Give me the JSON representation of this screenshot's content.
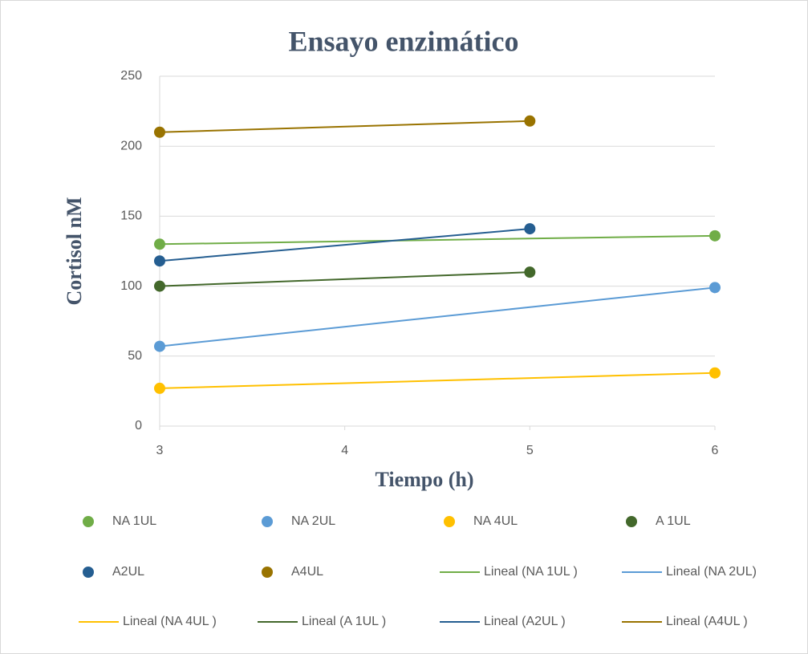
{
  "chart_data": {
    "type": "scatter",
    "title": "Ensayo enzimático",
    "x_label": "Tiempo (h)",
    "y_label": "Cortisol nM",
    "xlim": [
      3,
      6
    ],
    "xticks": [
      3,
      4,
      5,
      6
    ],
    "ylim": [
      0,
      250
    ],
    "yticks": [
      0,
      50,
      100,
      150,
      200,
      250
    ],
    "grid": true,
    "series": [
      {
        "name": "NA 1UL",
        "color": "#70ad47",
        "x": [
          3,
          6
        ],
        "values": [
          130,
          136
        ],
        "trendline": "Lineal (NA 1UL )"
      },
      {
        "name": "NA 2UL",
        "color": "#5b9bd5",
        "x": [
          3,
          6
        ],
        "values": [
          57,
          99
        ],
        "trendline": "Lineal (NA 2UL)"
      },
      {
        "name": "NA 4UL",
        "color": "#ffc000",
        "x": [
          3,
          6
        ],
        "values": [
          27,
          38
        ],
        "trendline": "Lineal (NA 4UL )"
      },
      {
        "name": "A 1UL",
        "color": "#43682b",
        "x": [
          3,
          5
        ],
        "values": [
          100,
          110
        ],
        "trendline": "Lineal (A 1UL )"
      },
      {
        "name": "A2UL",
        "color": "#255e91",
        "x": [
          3,
          5
        ],
        "values": [
          118,
          141
        ],
        "trendline": "Lineal (A2UL )"
      },
      {
        "name": "A4UL",
        "color": "#997300",
        "x": [
          3,
          5
        ],
        "values": [
          210,
          218
        ],
        "trendline": "Lineal (A4UL )"
      }
    ]
  }
}
